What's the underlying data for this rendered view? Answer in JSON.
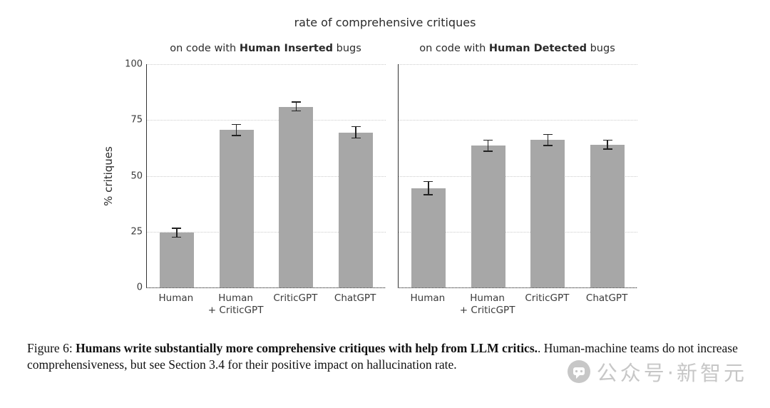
{
  "figure": {
    "title": "rate of comprehensive critiques",
    "caption_prefix": "Figure 6: ",
    "caption_bold": "Humans write substantially more comprehensive critiques with help from LLM critics.",
    "caption_rest": ". Human-machine teams do not increase comprehensiveness, but see Section 3.4 for their positive impact on hallucination rate."
  },
  "watermark": {
    "text": "公众号·新智元"
  },
  "chart_data": [
    {
      "type": "bar",
      "title_prefix": "on code with ",
      "title_bold": "Human Inserted",
      "title_suffix": " bugs",
      "categories": [
        "Human",
        "Human\n+ CriticGPT",
        "CriticGPT",
        "ChatGPT"
      ],
      "values": [
        24.5,
        70.5,
        81,
        69.5
      ],
      "errors": [
        2,
        2.5,
        2,
        2.5
      ],
      "ylabel": "% critiques",
      "xlabel": "",
      "ylim": [
        0,
        100
      ],
      "yticks": [
        0,
        25,
        50,
        75,
        100
      ],
      "grid": true,
      "legend": "none",
      "bar_color": "#a7a7a7",
      "error_color": "#222222"
    },
    {
      "type": "bar",
      "title_prefix": "on code with ",
      "title_bold": "Human Detected",
      "title_suffix": " bugs",
      "categories": [
        "Human",
        "Human\n+ CriticGPT",
        "CriticGPT",
        "ChatGPT"
      ],
      "values": [
        44.5,
        63.5,
        66,
        64
      ],
      "errors": [
        3,
        2.5,
        2.5,
        2
      ],
      "ylabel": "",
      "xlabel": "",
      "ylim": [
        0,
        100
      ],
      "yticks": [
        0,
        25,
        50,
        75,
        100
      ],
      "grid": true,
      "legend": "none",
      "bar_color": "#a7a7a7",
      "error_color": "#222222"
    }
  ]
}
